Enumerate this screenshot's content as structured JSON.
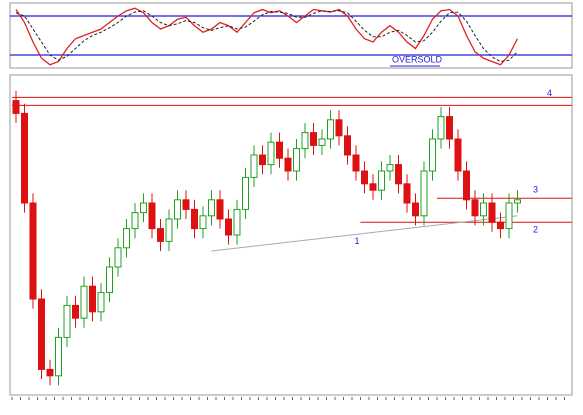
{
  "chart_data": [
    {
      "type": "line",
      "panel": "oscillator",
      "ylim": [
        0,
        100
      ],
      "levels": [
        80,
        20
      ],
      "level_color": "#2222dd",
      "annotation": "OVERSOLD",
      "annotation_color": "#2222dd",
      "series": [
        {
          "color": "#e02020",
          "dash": false,
          "values": [
            90,
            70,
            40,
            15,
            5,
            10,
            30,
            45,
            50,
            55,
            60,
            70,
            80,
            88,
            92,
            85,
            70,
            60,
            65,
            75,
            78,
            65,
            55,
            60,
            70,
            65,
            55,
            70,
            85,
            90,
            85,
            88,
            80,
            70,
            80,
            90,
            88,
            86,
            90,
            80,
            60,
            45,
            40,
            55,
            65,
            55,
            40,
            30,
            50,
            75,
            88,
            90,
            80,
            50,
            25,
            15,
            10,
            5,
            20,
            45
          ]
        },
        {
          "color": "#222222",
          "dash": true,
          "values": [
            85,
            80,
            60,
            40,
            20,
            12,
            18,
            30,
            42,
            50,
            55,
            62,
            70,
            80,
            86,
            88,
            80,
            70,
            65,
            68,
            73,
            70,
            62,
            58,
            62,
            65,
            60,
            63,
            72,
            82,
            87,
            86,
            84,
            78,
            78,
            84,
            88,
            87,
            88,
            85,
            72,
            58,
            48,
            48,
            55,
            58,
            50,
            40,
            42,
            55,
            72,
            85,
            86,
            72,
            50,
            30,
            17,
            10,
            12,
            25
          ]
        }
      ]
    },
    {
      "type": "candlestick",
      "panel": "price",
      "ylim": [
        0,
        100
      ],
      "up_color": "#22a022",
      "down_color": "#dd1111",
      "open": [
        92,
        88,
        60,
        30,
        8,
        6,
        18,
        28,
        24,
        34,
        26,
        32,
        40,
        46,
        52,
        57,
        60,
        52,
        48,
        55,
        61,
        58,
        52,
        56,
        61,
        55,
        50,
        58,
        68,
        75,
        72,
        79,
        74,
        70,
        77,
        82,
        78,
        80,
        86,
        81,
        75,
        70,
        66,
        64,
        70,
        72,
        66,
        60,
        56,
        70,
        80,
        87,
        80,
        70,
        61,
        56,
        60,
        54,
        52,
        60
      ],
      "high": [
        95,
        91,
        63,
        33,
        11,
        21,
        31,
        31,
        37,
        37,
        35,
        43,
        49,
        55,
        60,
        63,
        63,
        55,
        58,
        64,
        64,
        61,
        59,
        64,
        64,
        58,
        61,
        71,
        78,
        78,
        82,
        82,
        77,
        80,
        85,
        85,
        83,
        89,
        89,
        84,
        78,
        73,
        69,
        73,
        75,
        75,
        69,
        63,
        73,
        83,
        90,
        90,
        83,
        73,
        64,
        63,
        63,
        57,
        63,
        64
      ],
      "low": [
        85,
        57,
        27,
        5,
        3,
        3,
        15,
        21,
        21,
        23,
        23,
        29,
        37,
        43,
        49,
        54,
        49,
        45,
        45,
        52,
        55,
        49,
        49,
        53,
        52,
        47,
        47,
        55,
        65,
        69,
        69,
        71,
        67,
        67,
        74,
        75,
        75,
        77,
        78,
        72,
        67,
        63,
        61,
        61,
        67,
        63,
        57,
        53,
        53,
        67,
        77,
        77,
        67,
        58,
        53,
        53,
        51,
        49,
        49,
        57
      ],
      "close": [
        88,
        60,
        30,
        8,
        6,
        18,
        28,
        24,
        34,
        26,
        32,
        40,
        46,
        52,
        57,
        60,
        52,
        48,
        55,
        61,
        58,
        52,
        56,
        61,
        55,
        50,
        58,
        68,
        75,
        72,
        79,
        74,
        70,
        77,
        82,
        78,
        80,
        86,
        81,
        75,
        70,
        66,
        64,
        70,
        72,
        66,
        60,
        56,
        70,
        80,
        87,
        80,
        70,
        61,
        56,
        60,
        54,
        52,
        60,
        61
      ],
      "hlines": [
        {
          "value": 93,
          "label": "4",
          "from": 0
        },
        {
          "value": 90.5,
          "from": 0
        },
        {
          "value": 61.5,
          "label": "3",
          "from": 50
        },
        {
          "value": 54,
          "label": "2",
          "from": 41
        }
      ],
      "trendline": {
        "label": "1",
        "x": [
          23,
          59
        ],
        "y": [
          45,
          56
        ]
      },
      "line_color": "#dd1111",
      "label_color": "#2222dd"
    }
  ]
}
